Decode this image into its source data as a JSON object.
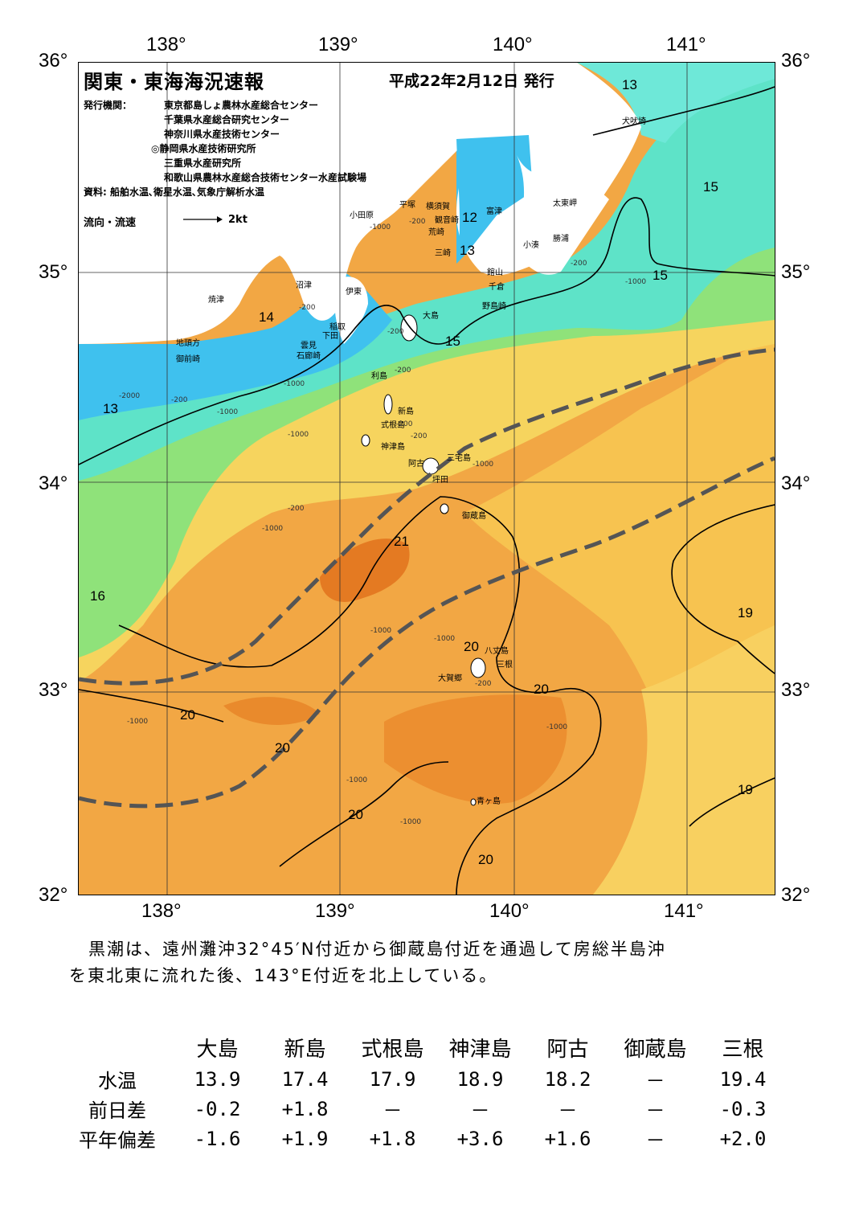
{
  "header": {
    "title": "関東・東海海況速報",
    "date": "平成22年2月12日 発行",
    "issuer_label": "発行機関：",
    "issuers": [
      "東京都島しょ農林水産総合センター",
      "千葉県水産総合研究センター",
      "神奈川県水産技術センター",
      "◎静岡県水産技術研究所",
      "三重県水産研究所",
      "和歌山県農林水産総合技術センター水産試験場"
    ],
    "source": "資料: 船舶水温､衛星水温､気象庁解析水温",
    "legend_label": "流向・流速",
    "legend_scale": "2kt"
  },
  "axes": {
    "lon_top": [
      "138°",
      "139°",
      "140°",
      "141°"
    ],
    "lon_bottom": [
      "138°",
      "139°",
      "140°",
      "141°"
    ],
    "lat_left": [
      "36°",
      "35°",
      "34°",
      "33°",
      "32°"
    ],
    "lat_right": [
      "36°",
      "35°",
      "34°",
      "33°",
      "32°"
    ]
  },
  "places": [
    {
      "name": "犬吠埼"
    },
    {
      "name": "太東岬"
    },
    {
      "name": "勝浦"
    },
    {
      "name": "小湊"
    },
    {
      "name": "富津"
    },
    {
      "name": "横須賀"
    },
    {
      "name": "観音崎"
    },
    {
      "name": "平塚"
    },
    {
      "name": "小田原"
    },
    {
      "name": "荒崎"
    },
    {
      "name": "三崎"
    },
    {
      "name": "館山"
    },
    {
      "name": "千倉"
    },
    {
      "name": "野島崎"
    },
    {
      "name": "沼津"
    },
    {
      "name": "伊東"
    },
    {
      "name": "焼津"
    },
    {
      "name": "稲取"
    },
    {
      "name": "下田"
    },
    {
      "name": "雲見"
    },
    {
      "name": "石廊崎"
    },
    {
      "name": "地頭方"
    },
    {
      "name": "御前崎"
    },
    {
      "name": "大島"
    },
    {
      "name": "利島"
    },
    {
      "name": "新島"
    },
    {
      "name": "式根島"
    },
    {
      "name": "神津島"
    },
    {
      "name": "三宅島"
    },
    {
      "name": "阿古"
    },
    {
      "name": "坪田"
    },
    {
      "name": "御蔵島"
    },
    {
      "name": "八丈島"
    },
    {
      "name": "三根"
    },
    {
      "name": "大賀郷"
    },
    {
      "name": "青ヶ島"
    }
  ],
  "isotherms": [
    "13",
    "12",
    "13",
    "15",
    "15",
    "14",
    "15",
    "13",
    "21",
    "16",
    "19",
    "20",
    "20",
    "20",
    "20",
    "20",
    "19",
    "20"
  ],
  "depths": [
    "-200",
    "-1000",
    "-200",
    "-200",
    "-1000",
    "-200",
    "-1000",
    "-2000",
    "-200",
    "-1000",
    "-200",
    "-1000",
    "-200",
    "-1000",
    "-200",
    "-1000",
    "-1000",
    "-200",
    "-1000",
    "-1000",
    "-1000",
    "-1000",
    "-200",
    "-1000"
  ],
  "colors": {
    "cold": "#3fc1ee",
    "cool": "#5ee3c8",
    "mild": "#8fe27a",
    "warm_yellow": "#f6d45e",
    "warm": "#f2a744",
    "hot": "#e77a24",
    "kuroshio_line": "#555555"
  },
  "summary": [
    "黒潮は、遠州灘沖32°45′N付近から御蔵島付近を通過して房総半島沖",
    "を東北東に流れた後、143°E付近を北上している。"
  ],
  "stats": {
    "columns": [
      "大島",
      "新島",
      "式根島",
      "神津島",
      "阿古",
      "御蔵島",
      "三根"
    ],
    "rows": [
      {
        "label": "水温",
        "values": [
          "13.9",
          "17.4",
          "17.9",
          "18.9",
          "18.2",
          "－",
          "19.4"
        ]
      },
      {
        "label": "前日差",
        "values": [
          "-0.2",
          "+1.8",
          "－",
          "－",
          "－",
          "－",
          "-0.3"
        ]
      },
      {
        "label": "平年偏差",
        "values": [
          "-1.6",
          "+1.9",
          "+1.8",
          "+3.6",
          "+1.6",
          "－",
          "+2.0"
        ]
      }
    ]
  }
}
